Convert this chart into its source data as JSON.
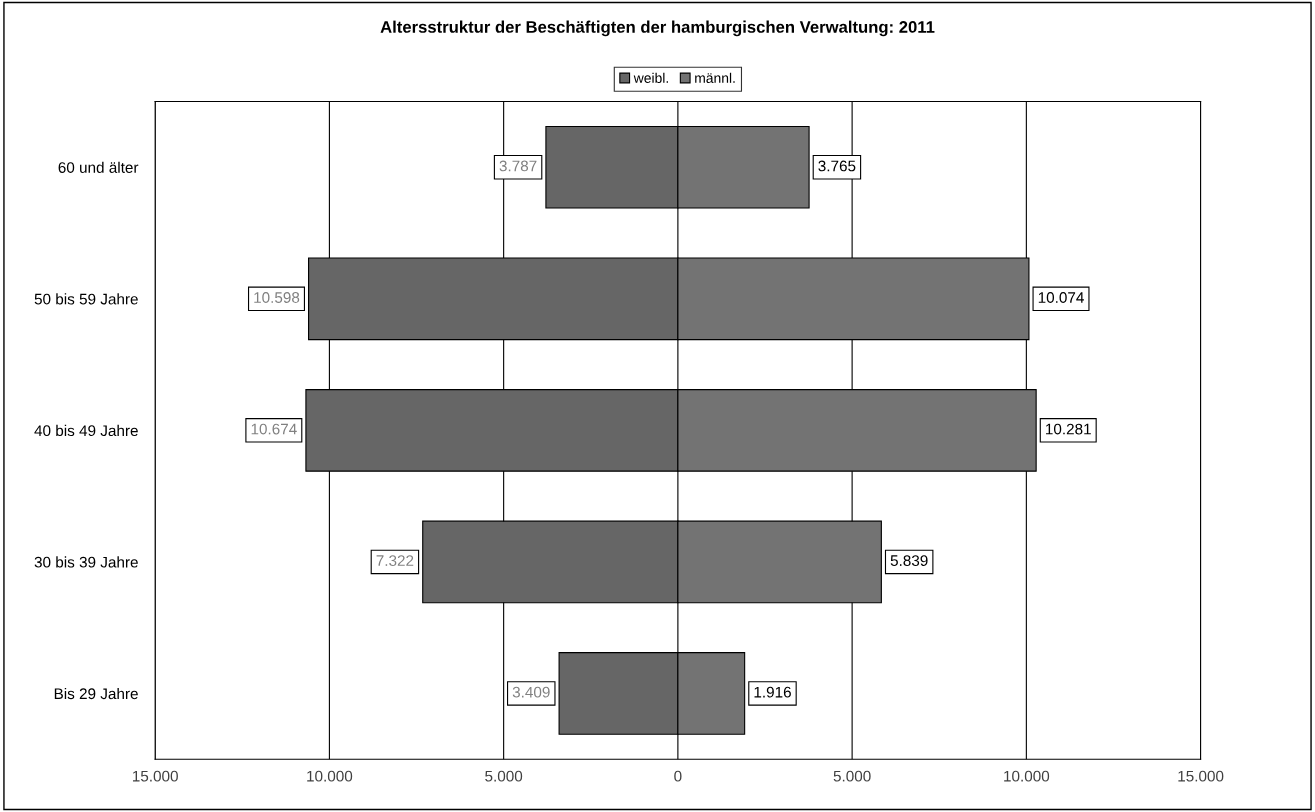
{
  "chart_data": {
    "type": "bar",
    "orientation": "horizontal",
    "title": "Altersstruktur der Beschäftigten der hamburgischen Verwaltung: 2011",
    "categories": [
      "60 und älter",
      "50 bis 59 Jahre",
      "40 bis 49 Jahre",
      "30 bis 39 Jahre",
      "Bis 29 Jahre"
    ],
    "series": [
      {
        "name": "weibl.",
        "color": "#666666",
        "values": [
          3787,
          10598,
          10674,
          7322,
          3409
        ],
        "base": [
          -3787,
          -10598,
          -10674,
          -7322,
          -3409
        ],
        "value_labels": [
          "3.787",
          "10.598",
          "10.674",
          "7.322",
          "3.409"
        ]
      },
      {
        "name": "männl.",
        "color": "#737373",
        "values": [
          3765,
          10074,
          10281,
          5839,
          1916
        ],
        "value_labels": [
          "3.765",
          "10.074",
          "10.281",
          "5.839",
          "1.916"
        ]
      }
    ],
    "xlim": [
      -15000,
      15000
    ],
    "xticks": [
      {
        "value": -15000,
        "label": "15.000"
      },
      {
        "value": -10000,
        "label": "10.000"
      },
      {
        "value": -5000,
        "label": "5.000"
      },
      0,
      {
        "value": 5000,
        "label": "5.000"
      },
      {
        "value": 10000,
        "label": "10.000"
      },
      {
        "value": 15000,
        "label": "15.000"
      }
    ],
    "grid": "x",
    "legend": "top"
  }
}
